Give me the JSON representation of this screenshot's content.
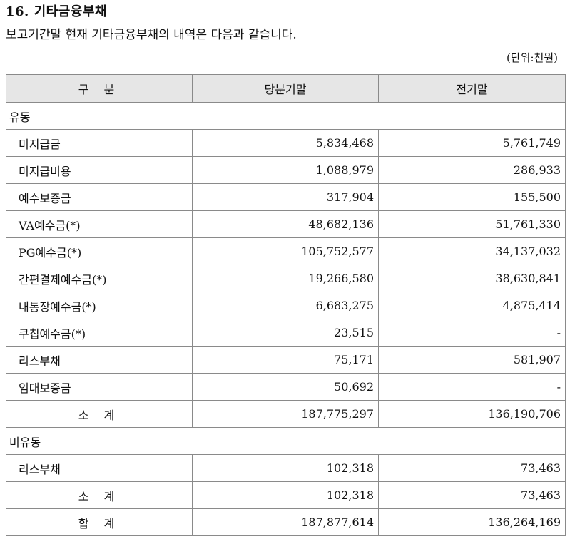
{
  "title": "16. 기타금융부채",
  "description": "보고기간말 현재 기타금융부채의 내역은 다음과 같습니다.",
  "unit": "(단위:천원)",
  "columns": [
    "구 분",
    "당분기말",
    "전기말"
  ],
  "sections": [
    {
      "label": "유동",
      "items": [
        {
          "name": "미지급금",
          "current": "5,834,468",
          "prior": "5,761,749"
        },
        {
          "name": "미지급비용",
          "current": "1,088,979",
          "prior": "286,933"
        },
        {
          "name": "예수보증금",
          "current": "317,904",
          "prior": "155,500"
        },
        {
          "name": "VA예수금(*)",
          "current": "48,682,136",
          "prior": "51,761,330"
        },
        {
          "name": "PG예수금(*)",
          "current": "105,752,577",
          "prior": "34,137,032"
        },
        {
          "name": "간편결제예수금(*)",
          "current": "19,266,580",
          "prior": "38,630,841"
        },
        {
          "name": "내통장예수금(*)",
          "current": "6,683,275",
          "prior": "4,875,414"
        },
        {
          "name": "쿠칩예수금(*)",
          "current": "23,515",
          "prior": "-"
        },
        {
          "name": "리스부채",
          "current": "75,171",
          "prior": "581,907"
        },
        {
          "name": "임대보증금",
          "current": "50,692",
          "prior": "-"
        }
      ],
      "subtotal": {
        "label": "소 계",
        "current": "187,775,297",
        "prior": "136,190,706"
      }
    },
    {
      "label": "비유동",
      "items": [
        {
          "name": "리스부채",
          "current": "102,318",
          "prior": "73,463"
        }
      ],
      "subtotal": {
        "label": "소 계",
        "current": "102,318",
        "prior": "73,463"
      }
    }
  ],
  "total": {
    "label": "합 계",
    "current": "187,877,614",
    "prior": "136,264,169"
  }
}
